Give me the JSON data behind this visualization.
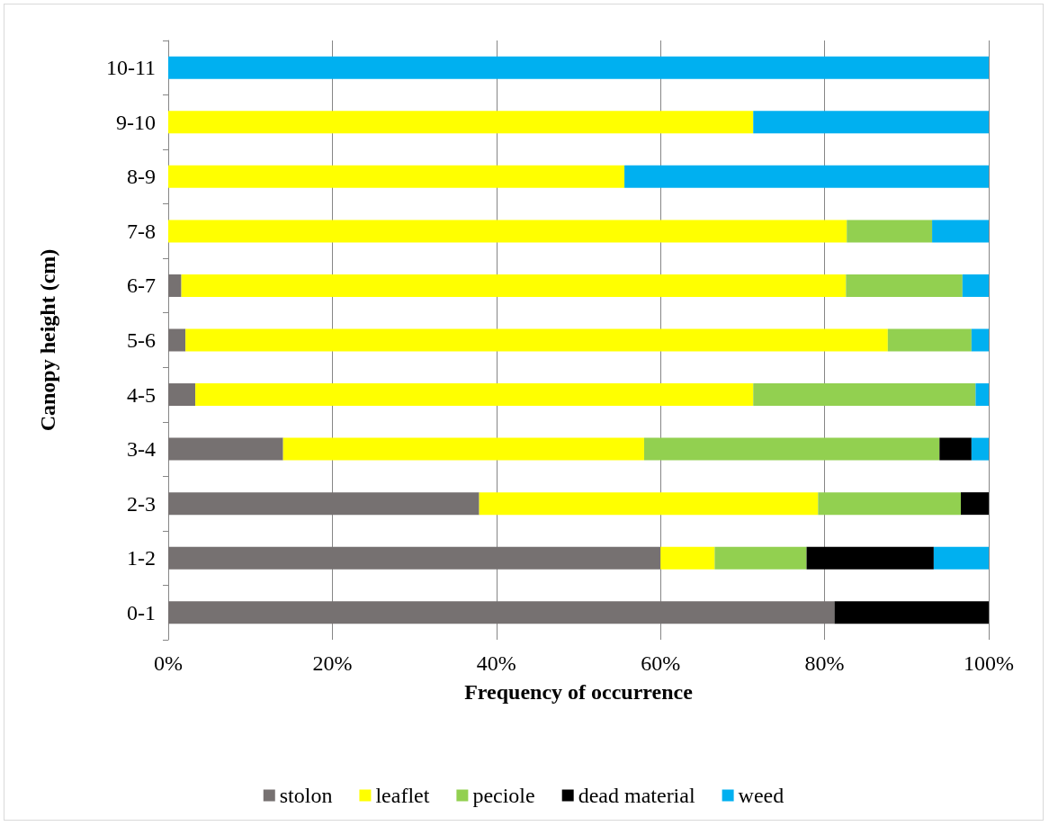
{
  "chart_data": {
    "type": "bar",
    "orientation": "horizontal",
    "stacked": true,
    "xlabel": "Frequency of occurrence",
    "ylabel": "Canopy height (cm)",
    "categories": [
      "10-11",
      "9-10",
      "8-9",
      "7-8",
      "6-7",
      "5-6",
      "4-5",
      "3-4",
      "2-3",
      "1-2",
      "0-1"
    ],
    "series": [
      {
        "name": "stolon",
        "color": "#767171",
        "values": [
          0,
          0,
          0,
          0,
          1.6,
          2.1,
          3.3,
          14.0,
          37.9,
          60.0,
          81.2
        ]
      },
      {
        "name": "leaflet",
        "color": "#ffff00",
        "values": [
          0,
          71.3,
          55.6,
          82.7,
          81.0,
          85.6,
          68.0,
          44.0,
          41.3,
          6.6,
          0
        ]
      },
      {
        "name": "peciole",
        "color": "#92d050",
        "values": [
          0,
          0,
          0,
          10.4,
          14.2,
          10.2,
          27.1,
          36.0,
          17.4,
          11.2,
          0
        ]
      },
      {
        "name": "dead material",
        "color": "#000000",
        "values": [
          0,
          0,
          0,
          0,
          0,
          0,
          0,
          3.9,
          3.4,
          15.5,
          18.8
        ]
      },
      {
        "name": "weed",
        "color": "#00b0f0",
        "values": [
          100,
          28.7,
          44.4,
          6.9,
          3.2,
          2.1,
          1.6,
          2.1,
          0,
          6.7,
          0
        ]
      }
    ],
    "xlim": [
      0,
      100
    ],
    "xticks": [
      {
        "value": 0,
        "label": "0%"
      },
      {
        "value": 20,
        "label": "20%"
      },
      {
        "value": 40,
        "label": "40%"
      },
      {
        "value": 60,
        "label": "60%"
      },
      {
        "value": 80,
        "label": "80%"
      },
      {
        "value": 100,
        "label": "100%"
      }
    ],
    "grid": "x",
    "legend": "bottom"
  }
}
